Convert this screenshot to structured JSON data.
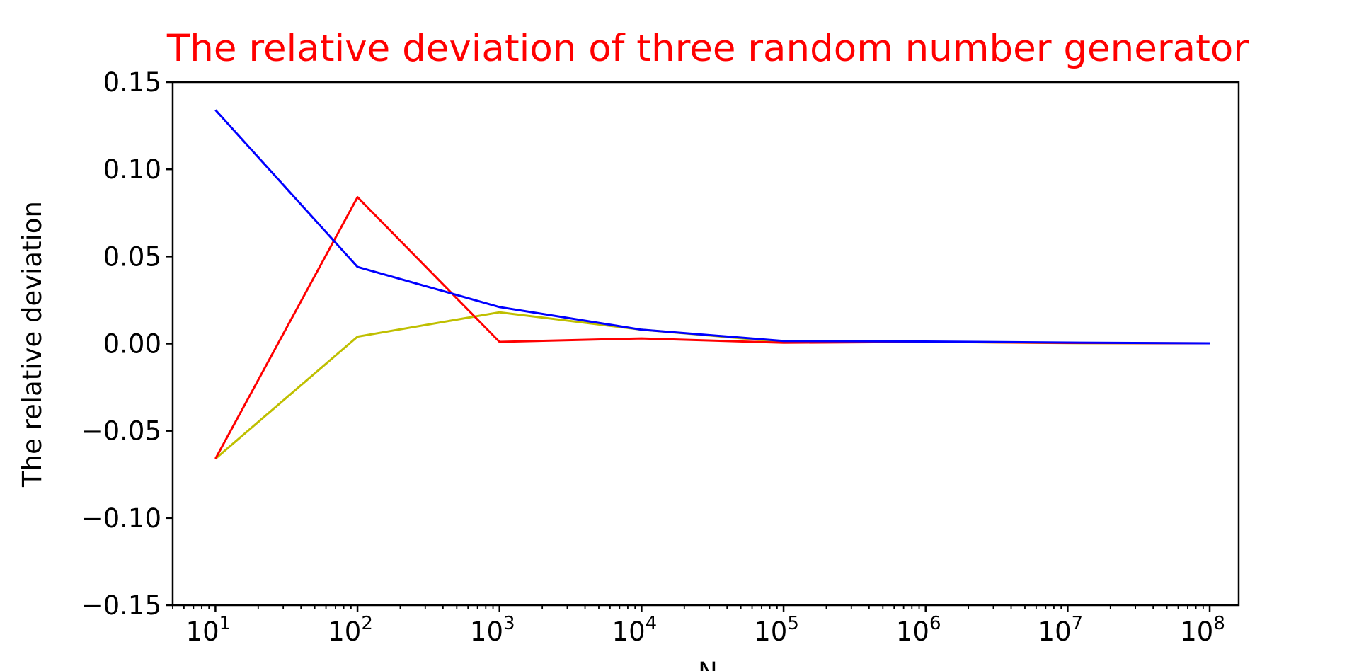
{
  "chart_data": {
    "type": "line",
    "title": "The relative deviation of three random number generator",
    "title_color": "#ff0000",
    "xlabel": "N",
    "ylabel": "The relative deviation",
    "x_scale": "log",
    "x": [
      10,
      100,
      1000,
      10000,
      100000,
      1000000,
      10000000,
      100000000
    ],
    "xlim": [
      5,
      160000000
    ],
    "ylim": [
      -0.15,
      0.15
    ],
    "y_ticks": [
      -0.15,
      -0.1,
      -0.05,
      0.0,
      0.05,
      0.1,
      0.15
    ],
    "y_tick_labels": [
      "−0.15",
      "−0.10",
      "−0.05",
      "0.00",
      "0.05",
      "0.10",
      "0.15"
    ],
    "x_tick_labels": [
      {
        "base": "10",
        "exp": "1"
      },
      {
        "base": "10",
        "exp": "2"
      },
      {
        "base": "10",
        "exp": "3"
      },
      {
        "base": "10",
        "exp": "4"
      },
      {
        "base": "10",
        "exp": "5"
      },
      {
        "base": "10",
        "exp": "6"
      },
      {
        "base": "10",
        "exp": "7"
      },
      {
        "base": "10",
        "exp": "8"
      }
    ],
    "grid": false,
    "series": [
      {
        "color": "#bfbf00",
        "values": [
          -0.066,
          0.004,
          0.018,
          0.008,
          0.001,
          0.001,
          0.0003,
          0.0002
        ]
      },
      {
        "color": "#ff0000",
        "values": [
          -0.066,
          0.084,
          0.001,
          0.003,
          0.0005,
          0.001,
          0.0004,
          0.0002
        ]
      },
      {
        "color": "#0000ff",
        "values": [
          0.134,
          0.044,
          0.021,
          0.008,
          0.0015,
          0.0012,
          0.0006,
          0.0002
        ]
      }
    ]
  }
}
